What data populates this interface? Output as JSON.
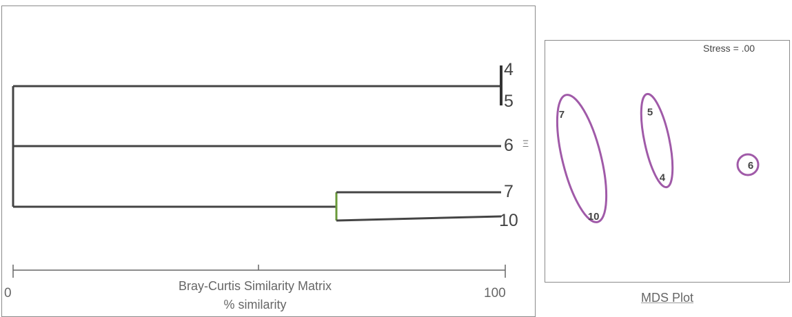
{
  "dendrogram": {
    "leaves": [
      "4",
      "5",
      "6",
      "7",
      "10"
    ],
    "leaf6_annotation": "Ξ",
    "axis_title": "Bray-Curtis Similarity Matrix",
    "axis_subtitle": "% similarity",
    "axis_min": "0",
    "axis_max": "100",
    "merges": [
      {
        "members": [
          "4",
          "5"
        ],
        "similarity": 100
      },
      {
        "members": [
          "7",
          "10"
        ],
        "similarity": 66
      },
      {
        "members": [
          "4",
          "5",
          "6",
          "7",
          "10"
        ],
        "similarity": 0
      }
    ],
    "colors": {
      "branch": "#444444",
      "accent": "#6a9a3a"
    }
  },
  "mds": {
    "caption": "MDS Plot",
    "stress_label": "Stress = .00",
    "points": [
      {
        "label": "7",
        "x": 0.07,
        "y": 0.31
      },
      {
        "label": "10",
        "x": 0.2,
        "y": 0.73
      },
      {
        "label": "5",
        "x": 0.43,
        "y": 0.3
      },
      {
        "label": "4",
        "x": 0.48,
        "y": 0.57
      },
      {
        "label": "6",
        "x": 0.84,
        "y": 0.52
      }
    ],
    "groups": [
      {
        "members": [
          "7",
          "10"
        ]
      },
      {
        "members": [
          "5",
          "4"
        ]
      },
      {
        "members": [
          "6"
        ]
      }
    ],
    "colors": {
      "ellipse": "#a05aa8",
      "text": "#444444"
    }
  }
}
